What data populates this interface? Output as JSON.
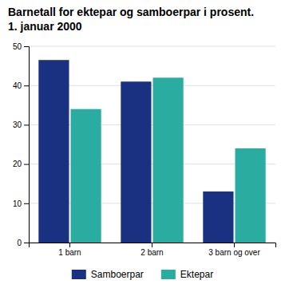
{
  "chart_data": {
    "type": "bar",
    "title": "Barnetall for ektepar og samboerpar i prosent.",
    "subtitle": "1. januar 2000",
    "categories": [
      "1 barn",
      "2 barn",
      "3 barn og over"
    ],
    "series": [
      {
        "name": "Samboerpar",
        "color": "#1a3080",
        "values": [
          46.5,
          41.0,
          13.0
        ]
      },
      {
        "name": "Ektepar",
        "color": "#2aada0",
        "values": [
          34.0,
          42.0,
          24.0
        ]
      }
    ],
    "ylim": [
      0,
      50
    ],
    "yticks": [
      0,
      10,
      20,
      30,
      40,
      50
    ],
    "grid": true,
    "legend": "bottom"
  }
}
